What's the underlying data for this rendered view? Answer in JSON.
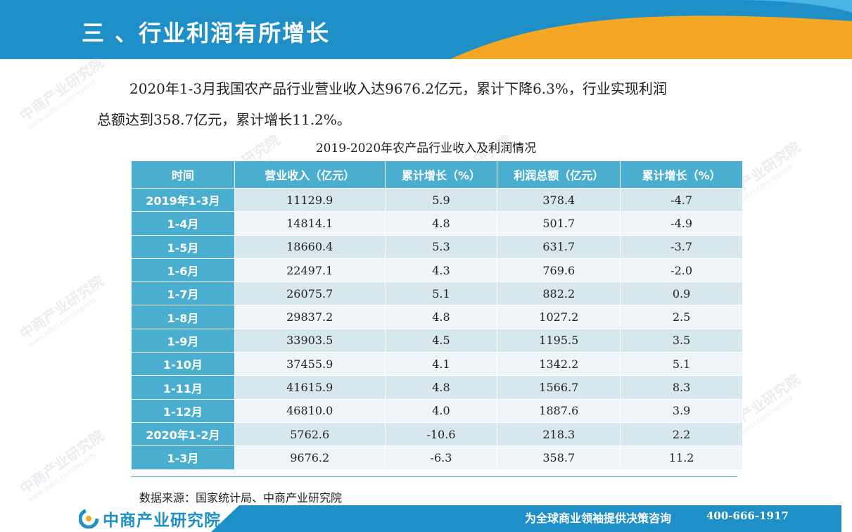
{
  "header": {
    "title": "三 、行业利润有所增长"
  },
  "watermark": {
    "name": "中商产业研究院",
    "url": "www.askci.com/reports"
  },
  "paragraph": {
    "line1": "2020年1-3月我国农产品行业营业收入达9676.2亿元，累计下降6.3%，行业实现利润",
    "line2": "总额达到358.7亿元，累计增长11.2%。"
  },
  "table": {
    "caption": "2019-2020年农产品行业收入及利润情况",
    "headers": [
      "时间",
      "营业收入（亿元）",
      "累计增长（%）",
      "利润总额（亿元）",
      "累计增长（%）"
    ],
    "rows": [
      [
        "2019年1-3月",
        "11129.9",
        "5.9",
        "378.4",
        "-4.7"
      ],
      [
        "1-4月",
        "14814.1",
        "4.8",
        "501.7",
        "-4.9"
      ],
      [
        "1-5月",
        "18660.4",
        "5.3",
        "631.7",
        "-3.7"
      ],
      [
        "1-6月",
        "22497.1",
        "4.3",
        "769.6",
        "-2.0"
      ],
      [
        "1-7月",
        "26075.7",
        "5.1",
        "882.2",
        "0.9"
      ],
      [
        "1-8月",
        "29837.2",
        "4.8",
        "1027.2",
        "2.5"
      ],
      [
        "1-9月",
        "33903.5",
        "4.5",
        "1195.5",
        "3.5"
      ],
      [
        "1-10月",
        "37455.9",
        "4.1",
        "1342.2",
        "5.1"
      ],
      [
        "1-11月",
        "41615.9",
        "4.8",
        "1566.7",
        "8.3"
      ],
      [
        "1-12月",
        "46810.0",
        "4.0",
        "1887.6",
        "3.9"
      ],
      [
        "2020年1-2月",
        "5762.6",
        "-10.6",
        "218.3",
        "2.2"
      ],
      [
        "1-3月",
        "9676.2",
        "-6.3",
        "358.7",
        "11.2"
      ]
    ]
  },
  "source": "数据来源：国家统计局、中商产业研究院",
  "footer": {
    "logo_text": "中商产业研究院",
    "slogan": "为全球商业领袖提供决策咨询",
    "phone": "400-666-1917"
  },
  "colors": {
    "primary": "#1f8fc8",
    "accent": "#f5a623",
    "table_header": "#4aaed0"
  },
  "icons": {
    "logo": "askci-logo-icon"
  }
}
